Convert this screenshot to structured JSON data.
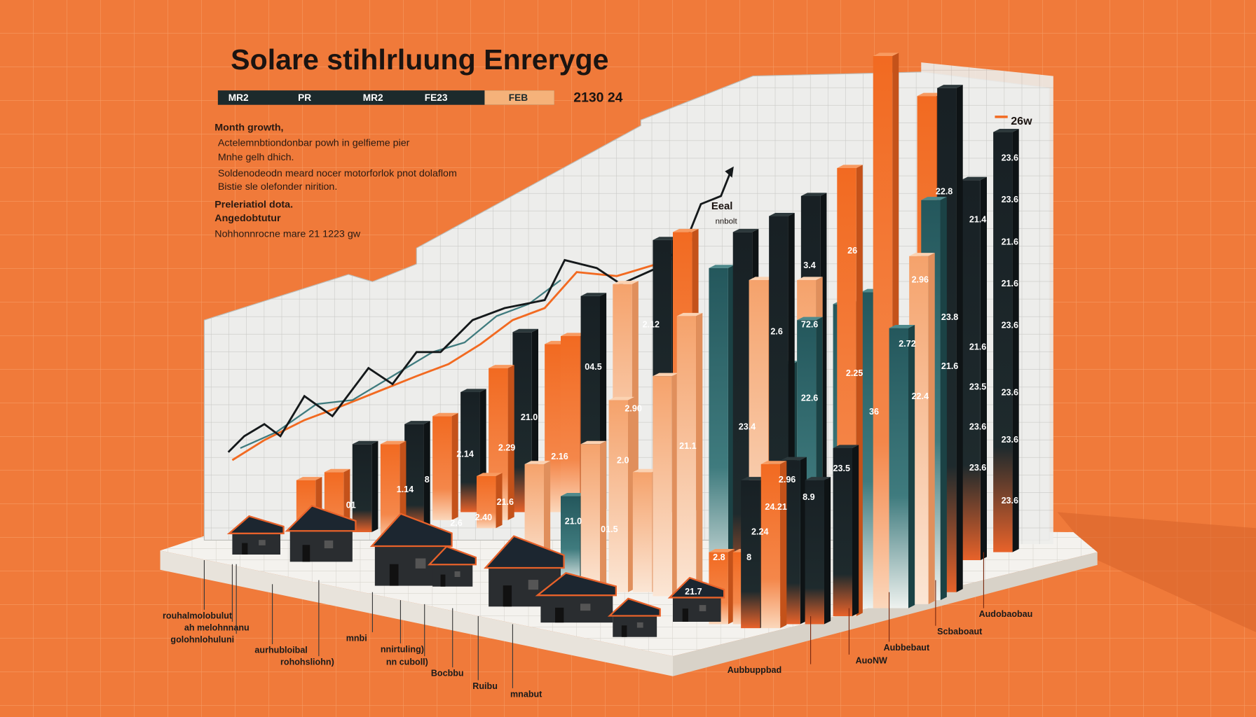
{
  "title": "Solare stihlrluung Enreryge",
  "legend": [
    "MR2",
    "PR",
    "MR2",
    "FE23",
    "FEB"
  ],
  "legend_year": "2130 24",
  "notes": [
    "Month growth,",
    "Actelemnbtiondonbar powh in gelfieme pier",
    "Mnhe gelh dhich.",
    "Soldenodeodn meard nocer motorforlok pnot dolaflom",
    "Bistie sle olefonder nirition.",
    "Preleriatiol dota.",
    "Angedobtutur",
    "Nohhonnrocne mare 21 1223 gw"
  ],
  "line_label": [
    "Eeal",
    "nnbolt"
  ],
  "peak_label": "26w",
  "bar_labels": [
    "3.4",
    "26",
    "2.96",
    "2.12",
    "72.6",
    "2.6",
    "2.72",
    "21.6",
    "21.6",
    "23.8",
    "22.8",
    "21.4",
    "23.6",
    "23.6",
    "21.6",
    "21.6",
    "23.6",
    "23.6",
    "23.6",
    "23.6",
    "23.5",
    "23.6",
    "23.6",
    "04.5",
    "2.90",
    "2.25",
    "22.4",
    "22.6",
    "36",
    "21.0",
    "23.4",
    "21.1",
    "2.14",
    "2.29",
    "2.16",
    "2.0",
    "23.5",
    "2.96",
    "8.9",
    "24.21",
    "21.6",
    "21.0",
    "01.5",
    "2.24",
    "2.8",
    "8",
    "21.7",
    "01",
    "1.14",
    "8",
    "2.6",
    "2.40"
  ],
  "bottom_labels": [
    "rouhalmolobulut",
    "ah melohnnanu",
    "golohnlohuluni",
    "aurhubloibal",
    "rohohsliohn)",
    "mnbi",
    "nnirtuling)",
    "nn cuboll)",
    "Bocbbu",
    "Ruibu",
    "mnabut",
    "Aubbuppbad",
    "AuoNW",
    "Aubbebaut",
    "Scbaboaut",
    "Audobaobau"
  ]
}
